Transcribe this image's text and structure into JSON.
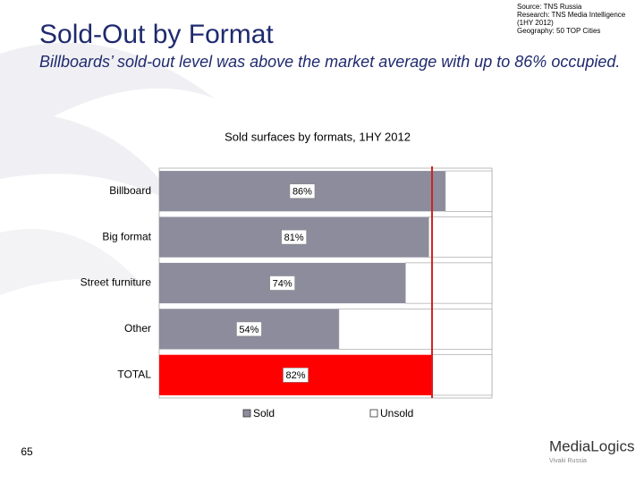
{
  "header": {
    "title": "Sold-Out by Format",
    "subtitle": "Billboards’ sold-out level was above the market average with up to 86% occupied.",
    "source": [
      "Source: TNS Russia",
      "Research: TNS Media Intelligence",
      "(1HY 2012)",
      "Geography: 50 TOP Cities"
    ]
  },
  "chart_data": {
    "type": "stacked_barh",
    "title": "Sold surfaces by formats, 1HY 2012",
    "categories": [
      "Billboard",
      "Big format",
      "Street furniture",
      "Other",
      "TOTAL"
    ],
    "series": [
      {
        "name": "Sold",
        "color": "#8c8c9c",
        "point_colors": [
          "#8c8c9c",
          "#8c8c9c",
          "#8c8c9c",
          "#8c8c9c",
          "#ff0000"
        ],
        "values": [
          86,
          81,
          74,
          54,
          82
        ],
        "value_labels": [
          "86%",
          "81%",
          "74%",
          "54%",
          "82%"
        ]
      },
      {
        "name": "Unsold",
        "color": "#ffffff",
        "values": [
          14,
          19,
          26,
          46,
          18
        ]
      }
    ],
    "xlim": [
      0,
      100
    ],
    "reference_line": {
      "value": 82,
      "color": "#cc2222"
    },
    "legend": "bottom"
  },
  "footer": {
    "page": "65",
    "logo": "MediaLogics",
    "logo_sub": "Vivaki Russia"
  }
}
